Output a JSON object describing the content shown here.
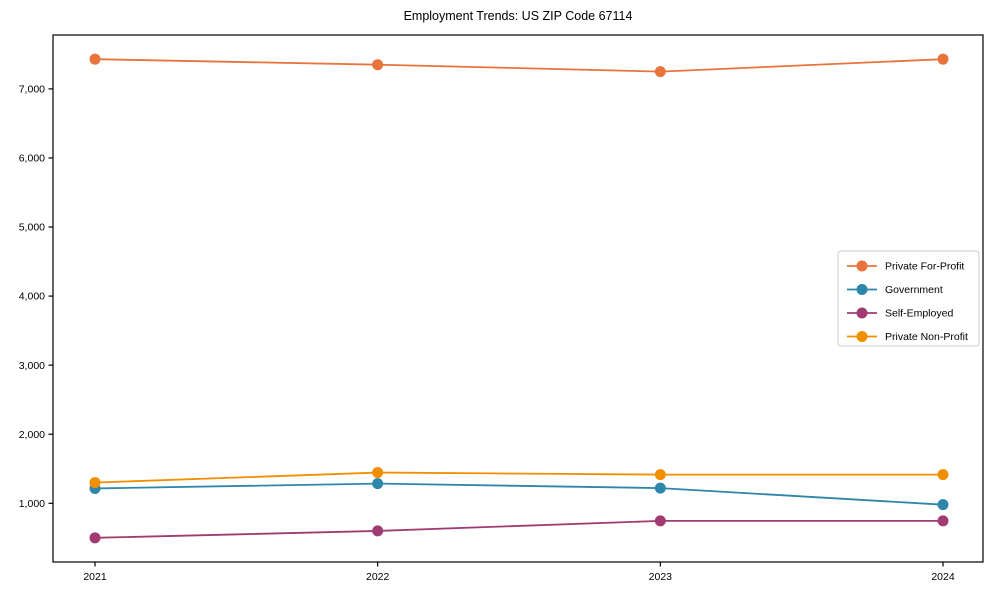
{
  "title": "Employment Trends: US ZIP Code 67114",
  "chart_data": {
    "type": "line",
    "title": "Employment Trends: US ZIP Code 67114",
    "x": [
      "2021",
      "2022",
      "2023",
      "2024"
    ],
    "series": [
      {
        "name": "Private For-Profit",
        "color": "#E8743B",
        "values": [
          7430,
          7350,
          7250,
          7430
        ]
      },
      {
        "name": "Government",
        "color": "#2E86AB",
        "values": [
          1215,
          1285,
          1220,
          980
        ]
      },
      {
        "name": "Self-Employed",
        "color": "#A23B72",
        "values": [
          500,
          600,
          745,
          745
        ]
      },
      {
        "name": "Private Non-Profit",
        "color": "#F18F01",
        "values": [
          1300,
          1445,
          1415,
          1415
        ]
      }
    ],
    "xlabel": "",
    "ylabel": "",
    "ylim": [
      150,
      7780
    ],
    "yticks": [
      1000,
      2000,
      3000,
      4000,
      5000,
      6000,
      7000
    ],
    "ytick_labels": [
      "1,000",
      "2,000",
      "3,000",
      "4,000",
      "5,000",
      "6,000",
      "7,000"
    ],
    "grid": false,
    "legend_position": "center right",
    "marker": "o",
    "axis_color": "#000000",
    "legend_border_color": "#cccccc",
    "background_color": "#ffffff"
  }
}
